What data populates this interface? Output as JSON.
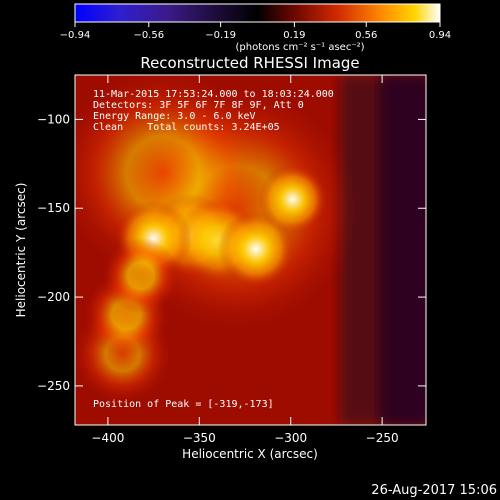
{
  "chart_data": {
    "type": "heatmap",
    "title": "Reconstructed RHESSI Image",
    "xlabel": "Heliocentric X (arcsec)",
    "ylabel": "Heliocentric Y (arcsec)",
    "x_range": [
      -418,
      -226
    ],
    "y_range": [
      -272,
      -75
    ],
    "x_ticks": [
      -400,
      -350,
      -300,
      -250
    ],
    "y_ticks": [
      -100,
      -150,
      -200,
      -250
    ],
    "x_tick_labels": [
      "−400",
      "−350",
      "−300",
      "−250"
    ],
    "y_tick_labels": [
      "−100",
      "−150",
      "−200",
      "−250"
    ],
    "colorbar": {
      "range": [
        -0.94,
        0.94
      ],
      "ticks": [
        -0.94,
        -0.56,
        -0.19,
        0.19,
        0.56,
        0.94
      ],
      "tick_labels": [
        "−0.94",
        "−0.56",
        "−0.19",
        "0.19",
        "0.56",
        "0.94"
      ],
      "unit_label": "(photons cm⁻² s⁻¹ asec⁻²)"
    },
    "sources": [
      {
        "x": -375,
        "y": -167,
        "peak": 0.88,
        "width": 11
      },
      {
        "x": -355,
        "y": -165,
        "peak": 0.6,
        "width": 12
      },
      {
        "x": -340,
        "y": -168,
        "peak": 0.62,
        "width": 12
      },
      {
        "x": -319,
        "y": -173,
        "peak": 0.94,
        "width": 11
      },
      {
        "x": -299,
        "y": -145,
        "peak": 0.88,
        "width": 10
      },
      {
        "x": -382,
        "y": -188,
        "peak": 0.5,
        "width": 11
      },
      {
        "x": -390,
        "y": -210,
        "peak": 0.44,
        "width": 12
      },
      {
        "x": -392,
        "y": -232,
        "peak": 0.28,
        "width": 14
      },
      {
        "x": -370,
        "y": -130,
        "peak": 0.3,
        "width": 30
      },
      {
        "x": -330,
        "y": -150,
        "peak": 0.35,
        "width": 35
      }
    ],
    "annotations": [
      "11-Mar-2015 17:53:24.000 to 18:03:24.000",
      "Detectors: 3F 5F 6F 7F 8F 9F, Att 0",
      "Energy Range: 3.0 - 6.0 keV",
      "Clean    Total counts: 3.24E+05"
    ],
    "peak_label": "Position of Peak = [-319,-173]",
    "footer_date": "26-Aug-2017 15:06",
    "colormap": "rainbow-black-red-yellow-white"
  }
}
